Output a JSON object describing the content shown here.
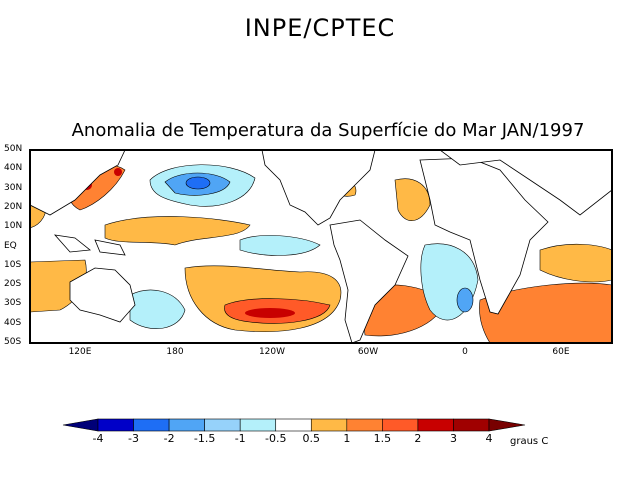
{
  "header": {
    "title": "INPE/CPTEC",
    "subtitle": "Anomalia de Temperatura da Superfície do Mar JAN/1997"
  },
  "map": {
    "lat_labels": [
      "50N",
      "40N",
      "30N",
      "20N",
      "10N",
      "EQ",
      "10S",
      "20S",
      "30S",
      "40S",
      "50S"
    ],
    "lon_labels": [
      "120E",
      "180",
      "120W",
      "60W",
      "0",
      "60E"
    ]
  },
  "colorbar": {
    "labels": [
      "-4",
      "-3",
      "-2",
      "-1.5",
      "-1",
      "-0.5",
      "0.5",
      "1",
      "1.5",
      "2",
      "3",
      "4"
    ],
    "unit": "graus C",
    "colors": [
      "#000078",
      "#0000c8",
      "#1e6ef5",
      "#50a5f5",
      "#96d2fa",
      "#b4f0fa",
      "#ffffff",
      "#ffb946",
      "#ff8232",
      "#ff5a28",
      "#c80000",
      "#a00000",
      "#780000"
    ]
  }
}
